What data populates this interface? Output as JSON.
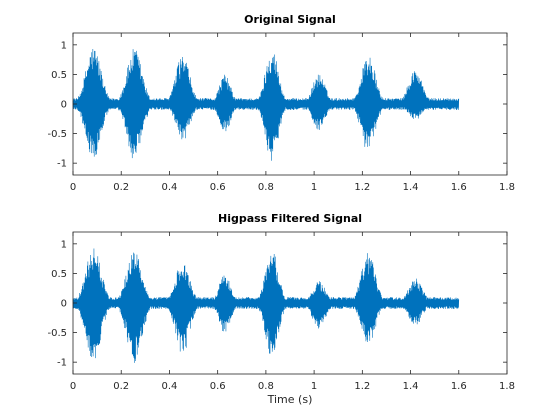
{
  "figure": {
    "background": "#ffffff",
    "axis_color": "#262626",
    "line_color": "#0072BD"
  },
  "chart_data": [
    {
      "type": "line",
      "title": "Original Signal",
      "xlabel": "",
      "ylabel": "",
      "xlim": [
        0,
        1.8
      ],
      "ylim": [
        -1.2,
        1.2
      ],
      "xticks": [
        0,
        0.2,
        0.4,
        0.6,
        0.8,
        1,
        1.2,
        1.4,
        1.6,
        1.8
      ],
      "xtick_labels": [
        "0",
        "0.2",
        "0.4",
        "0.6",
        "0.8",
        "1",
        "1.2",
        "1.4",
        "1.6",
        "1.8"
      ],
      "yticks": [
        -1,
        -0.5,
        0,
        0.5,
        1
      ],
      "ytick_labels": [
        "-1",
        "-0.5",
        "0",
        "0.5",
        "1"
      ],
      "grid": false,
      "series": [
        {
          "color": "#0072BD",
          "signal_end_s": 1.6,
          "noise_floor": 0.1,
          "bursts": [
            {
              "t": 0.085,
              "peak_pos": 0.99,
              "peak_neg": -0.95,
              "width_s": 0.065
            },
            {
              "t": 0.255,
              "peak_pos": 0.95,
              "peak_neg": -0.97,
              "width_s": 0.065
            },
            {
              "t": 0.455,
              "peak_pos": 0.84,
              "peak_neg": -0.65,
              "width_s": 0.06
            },
            {
              "t": 0.63,
              "peak_pos": 0.5,
              "peak_neg": -0.48,
              "width_s": 0.05
            },
            {
              "t": 0.825,
              "peak_pos": 0.97,
              "peak_neg": -0.97,
              "width_s": 0.055
            },
            {
              "t": 1.02,
              "peak_pos": 0.52,
              "peak_neg": -0.45,
              "width_s": 0.055
            },
            {
              "t": 1.225,
              "peak_pos": 0.85,
              "peak_neg": -0.83,
              "width_s": 0.06
            },
            {
              "t": 1.42,
              "peak_pos": 0.6,
              "peak_neg": -0.28,
              "width_s": 0.06
            }
          ]
        }
      ]
    },
    {
      "type": "line",
      "title": "Higpass Filtered Signal",
      "xlabel": "Time (s)",
      "ylabel": "",
      "xlim": [
        0,
        1.8
      ],
      "ylim": [
        -1.2,
        1.2
      ],
      "xticks": [
        0,
        0.2,
        0.4,
        0.6,
        0.8,
        1,
        1.2,
        1.4,
        1.6,
        1.8
      ],
      "xtick_labels": [
        "0",
        "0.2",
        "0.4",
        "0.6",
        "0.8",
        "1",
        "1.2",
        "1.4",
        "1.6",
        "1.8"
      ],
      "yticks": [
        -1,
        -0.5,
        0,
        0.5,
        1
      ],
      "ytick_labels": [
        "-1",
        "-0.5",
        "0",
        "0.5",
        "1"
      ],
      "grid": false,
      "series": [
        {
          "color": "#0072BD",
          "signal_end_s": 1.6,
          "noise_floor": 0.1,
          "bursts": [
            {
              "t": 0.085,
              "peak_pos": 0.95,
              "peak_neg": -1.02,
              "width_s": 0.065
            },
            {
              "t": 0.255,
              "peak_pos": 0.93,
              "peak_neg": -1.03,
              "width_s": 0.065
            },
            {
              "t": 0.455,
              "peak_pos": 0.73,
              "peak_neg": -0.88,
              "width_s": 0.06
            },
            {
              "t": 0.63,
              "peak_pos": 0.5,
              "peak_neg": -0.52,
              "width_s": 0.05
            },
            {
              "t": 0.825,
              "peak_pos": 0.91,
              "peak_neg": -0.96,
              "width_s": 0.055
            },
            {
              "t": 1.02,
              "peak_pos": 0.38,
              "peak_neg": -0.45,
              "width_s": 0.055
            },
            {
              "t": 1.225,
              "peak_pos": 0.86,
              "peak_neg": -0.72,
              "width_s": 0.06
            },
            {
              "t": 1.42,
              "peak_pos": 0.42,
              "peak_neg": -0.38,
              "width_s": 0.06
            }
          ]
        }
      ]
    }
  ]
}
